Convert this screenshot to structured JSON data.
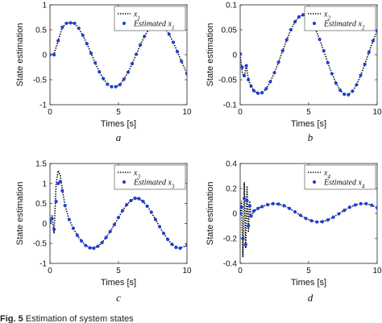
{
  "caption": {
    "label": "Fig. 5",
    "text": "Estimation of system states"
  },
  "chart_data": [
    {
      "type": "line",
      "panel_label": "a",
      "xlabel": "Times [s]",
      "ylabel": "State estimation",
      "xlim": [
        0,
        10
      ],
      "ylim": [
        -1,
        1
      ],
      "xticks": [
        "0",
        "5",
        "10"
      ],
      "yticks": [
        "-1",
        "-0.5",
        "0",
        "0.5",
        "1"
      ],
      "legend_position": "top-right",
      "x": [
        0,
        0.3,
        0.6,
        0.9,
        1.2,
        1.5,
        1.8,
        2.1,
        2.4,
        2.7,
        3.0,
        3.3,
        3.6,
        3.9,
        4.2,
        4.5,
        4.8,
        5.1,
        5.4,
        5.7,
        6.0,
        6.3,
        6.6,
        6.9,
        7.2,
        7.5,
        7.8,
        8.1,
        8.4,
        8.7,
        9.0,
        9.3,
        9.6,
        10.0
      ],
      "series": [
        {
          "name": "x1",
          "style": "dotted",
          "color": "#000000",
          "values": [
            0.0,
            0.02,
            0.28,
            0.55,
            0.63,
            0.64,
            0.63,
            0.53,
            0.39,
            0.22,
            0.03,
            -0.16,
            -0.34,
            -0.48,
            -0.59,
            -0.64,
            -0.64,
            -0.6,
            -0.49,
            -0.35,
            -0.18,
            0.01,
            0.2,
            0.37,
            0.51,
            0.6,
            0.64,
            0.62,
            0.54,
            0.41,
            0.25,
            0.06,
            -0.13,
            -0.38
          ]
        },
        {
          "name": "Estimated x1",
          "style": "markers",
          "color": "#1f3fd6",
          "values": [
            0.0,
            0.0,
            0.28,
            0.55,
            0.63,
            0.64,
            0.63,
            0.53,
            0.39,
            0.22,
            0.03,
            -0.16,
            -0.34,
            -0.48,
            -0.59,
            -0.64,
            -0.64,
            -0.6,
            -0.49,
            -0.35,
            -0.18,
            0.01,
            0.2,
            0.37,
            0.51,
            0.6,
            0.64,
            0.62,
            0.54,
            0.41,
            0.25,
            0.06,
            -0.13,
            -0.38
          ]
        }
      ]
    },
    {
      "type": "line",
      "panel_label": "b",
      "xlabel": "Times [s]",
      "ylabel": "State estimation",
      "xlim": [
        0,
        10
      ],
      "ylim": [
        -0.1,
        0.1
      ],
      "xticks": [
        "0",
        "5",
        "10"
      ],
      "yticks": [
        "-0.1",
        "-0.05",
        "0",
        "0.05",
        "0.1"
      ],
      "legend_position": "top-right",
      "x": [
        0,
        0.15,
        0.3,
        0.45,
        0.6,
        0.8,
        1.0,
        1.3,
        1.6,
        1.9,
        2.2,
        2.5,
        2.8,
        3.1,
        3.4,
        3.7,
        4.0,
        4.3,
        4.6,
        4.9,
        5.2,
        5.5,
        5.8,
        6.1,
        6.4,
        6.7,
        7.0,
        7.3,
        7.6,
        7.9,
        8.2,
        8.5,
        8.8,
        9.1,
        9.4,
        9.7,
        10.0
      ],
      "series": [
        {
          "name": "x2",
          "style": "dotted",
          "color": "#000000",
          "values": [
            0.0,
            -0.035,
            -0.045,
            -0.02,
            -0.05,
            -0.063,
            -0.072,
            -0.077,
            -0.076,
            -0.068,
            -0.054,
            -0.036,
            -0.015,
            0.008,
            0.03,
            0.05,
            0.066,
            0.076,
            0.08,
            0.077,
            0.067,
            0.051,
            0.031,
            0.008,
            -0.016,
            -0.038,
            -0.057,
            -0.071,
            -0.079,
            -0.08,
            -0.073,
            -0.06,
            -0.041,
            -0.019,
            0.005,
            0.028,
            0.048
          ]
        },
        {
          "name": "Estimated x2",
          "style": "markers",
          "color": "#1f3fd6",
          "values": [
            0.002,
            -0.025,
            -0.042,
            -0.022,
            -0.05,
            -0.063,
            -0.072,
            -0.077,
            -0.076,
            -0.068,
            -0.054,
            -0.036,
            -0.015,
            0.008,
            0.03,
            0.05,
            0.066,
            0.076,
            0.08,
            0.077,
            0.067,
            0.051,
            0.031,
            0.008,
            -0.016,
            -0.038,
            -0.057,
            -0.071,
            -0.079,
            -0.08,
            -0.073,
            -0.06,
            -0.041,
            -0.019,
            0.005,
            0.028,
            0.048
          ]
        }
      ]
    },
    {
      "type": "line",
      "panel_label": "c",
      "xlabel": "Times [s]",
      "ylabel": "State estimation",
      "xlim": [
        0,
        10
      ],
      "ylim": [
        -1,
        1.5
      ],
      "xticks": [
        "0",
        "5",
        "10"
      ],
      "yticks": [
        "-1",
        "-0.5",
        "0",
        "0.5",
        "1",
        "1.5"
      ],
      "legend_position": "top-right",
      "x": [
        0,
        0.15,
        0.3,
        0.45,
        0.6,
        0.75,
        0.9,
        1.1,
        1.4,
        1.7,
        2.0,
        2.3,
        2.6,
        2.9,
        3.2,
        3.5,
        3.8,
        4.1,
        4.4,
        4.7,
        5.0,
        5.3,
        5.6,
        5.9,
        6.2,
        6.5,
        6.8,
        7.1,
        7.4,
        7.7,
        8.0,
        8.3,
        8.6,
        8.9,
        9.2,
        9.5,
        10.0
      ],
      "series": [
        {
          "name": "x3",
          "style": "dotted",
          "color": "#000000",
          "values": [
            0.0,
            0.2,
            -0.25,
            1.0,
            1.32,
            1.2,
            0.85,
            0.45,
            0.1,
            -0.12,
            -0.3,
            -0.44,
            -0.55,
            -0.61,
            -0.62,
            -0.57,
            -0.48,
            -0.35,
            -0.2,
            -0.03,
            0.15,
            0.32,
            0.47,
            0.57,
            0.63,
            0.62,
            0.55,
            0.43,
            0.28,
            0.1,
            -0.08,
            -0.25,
            -0.4,
            -0.52,
            -0.6,
            -0.62,
            -0.55
          ]
        },
        {
          "name": "Estimated x3",
          "style": "markers",
          "color": "#1f3fd6",
          "values": [
            0.05,
            0.12,
            -0.15,
            0.55,
            1.0,
            1.05,
            0.82,
            0.45,
            0.1,
            -0.12,
            -0.3,
            -0.44,
            -0.55,
            -0.61,
            -0.62,
            -0.57,
            -0.48,
            -0.35,
            -0.2,
            -0.03,
            0.15,
            0.32,
            0.47,
            0.57,
            0.63,
            0.62,
            0.55,
            0.43,
            0.28,
            0.1,
            -0.08,
            -0.25,
            -0.4,
            -0.52,
            -0.6,
            -0.62,
            -0.55
          ]
        }
      ]
    },
    {
      "type": "line",
      "panel_label": "d",
      "xlabel": "Times [s]",
      "ylabel": "State estimation",
      "xlim": [
        0,
        10
      ],
      "ylim": [
        -0.4,
        0.4
      ],
      "xticks": [
        "0",
        "5",
        "10"
      ],
      "yticks": [
        "-0.4",
        "-0.2",
        "0",
        "0.2",
        "0.4"
      ],
      "legend_position": "top-right",
      "x": [
        0,
        0.1,
        0.2,
        0.3,
        0.4,
        0.5,
        0.6,
        0.7,
        0.8,
        1.0,
        1.3,
        1.6,
        2.0,
        2.4,
        2.8,
        3.2,
        3.6,
        4.0,
        4.4,
        4.8,
        5.2,
        5.6,
        6.0,
        6.4,
        6.8,
        7.2,
        7.6,
        8.0,
        8.4,
        8.8,
        9.2,
        9.6,
        10.0
      ],
      "series": [
        {
          "name": "x4",
          "style": "dotted",
          "color": "#000000",
          "values": [
            0.0,
            0.1,
            -0.35,
            0.25,
            -0.28,
            0.22,
            -0.15,
            0.1,
            -0.03,
            0.02,
            0.04,
            0.055,
            0.07,
            0.078,
            0.075,
            0.062,
            0.04,
            0.013,
            -0.015,
            -0.04,
            -0.058,
            -0.068,
            -0.066,
            -0.052,
            -0.03,
            -0.003,
            0.025,
            0.05,
            0.068,
            0.078,
            0.078,
            0.066,
            0.045
          ]
        },
        {
          "name": "Estimated x4",
          "style": "markers",
          "color": "#1f3fd6",
          "values": [
            0.0,
            0.05,
            -0.2,
            0.12,
            -0.25,
            0.1,
            -0.1,
            0.06,
            -0.02,
            0.02,
            0.04,
            0.055,
            0.07,
            0.078,
            0.075,
            0.062,
            0.04,
            0.013,
            -0.015,
            -0.04,
            -0.058,
            -0.068,
            -0.066,
            -0.052,
            -0.03,
            -0.003,
            0.025,
            0.05,
            0.068,
            0.078,
            0.078,
            0.066,
            0.045
          ]
        }
      ]
    }
  ]
}
